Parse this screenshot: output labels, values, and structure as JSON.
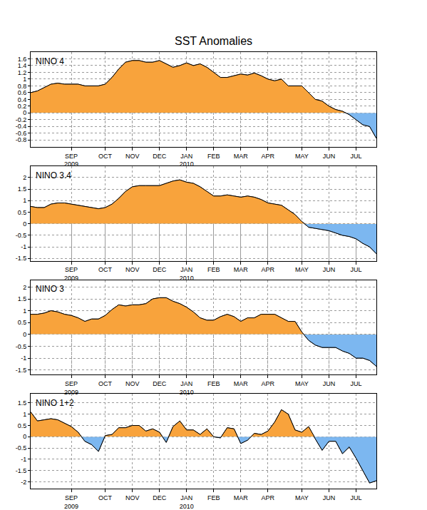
{
  "title": "SST Anomalies",
  "chart_data": [
    {
      "type": "area",
      "title": "NINO 4",
      "categories": [
        null,
        null,
        null,
        null,
        null,
        null,
        "SEP\n2009",
        null,
        null,
        null,
        null,
        "OCT",
        null,
        null,
        null,
        "NOV",
        null,
        null,
        null,
        "DEC",
        null,
        null,
        null,
        "JAN\n2010",
        null,
        null,
        null,
        "FEB",
        null,
        null,
        null,
        "MAR",
        null,
        null,
        null,
        "APR",
        null,
        null,
        null,
        null,
        "MAY",
        null,
        null,
        null,
        "JUN",
        null,
        null,
        null,
        "JUL",
        null,
        null,
        null
      ],
      "values": [
        0.6,
        0.65,
        0.75,
        0.85,
        0.88,
        0.85,
        0.85,
        0.85,
        0.8,
        0.8,
        0.8,
        0.85,
        1.05,
        1.3,
        1.5,
        1.55,
        1.55,
        1.5,
        1.5,
        1.55,
        1.45,
        1.35,
        1.4,
        1.48,
        1.4,
        1.45,
        1.35,
        1.2,
        1.05,
        1.05,
        1.1,
        1.15,
        1.12,
        1.18,
        1.1,
        1.0,
        0.95,
        1.0,
        0.8,
        0.8,
        0.8,
        0.6,
        0.4,
        0.35,
        0.2,
        0.1,
        0.05,
        -0.05,
        -0.2,
        -0.35,
        -0.4,
        -0.75
      ],
      "colors": [
        "#f8a33c",
        "#7cb7f0"
      ],
      "ylim": [
        -1,
        1.8
      ],
      "yticks": [
        -0.8,
        -0.6,
        -0.4,
        -0.2,
        0,
        0.2,
        0.4,
        0.6,
        0.8,
        1,
        1.2,
        1.4,
        1.6
      ],
      "grid": true
    },
    {
      "type": "area",
      "title": "NINO 3.4",
      "categories": [
        null,
        null,
        null,
        null,
        null,
        null,
        "SEP\n2009",
        null,
        null,
        null,
        null,
        "OCT",
        null,
        null,
        null,
        "NOV",
        null,
        null,
        null,
        "DEC",
        null,
        null,
        null,
        "JAN\n2010",
        null,
        null,
        null,
        "FEB",
        null,
        null,
        null,
        "MAR",
        null,
        null,
        null,
        "APR",
        null,
        null,
        null,
        null,
        "MAY",
        null,
        null,
        null,
        "JUN",
        null,
        null,
        null,
        "JUL",
        null,
        null,
        null
      ],
      "values": [
        0.75,
        0.7,
        0.7,
        0.85,
        0.9,
        0.9,
        0.85,
        0.8,
        0.75,
        0.7,
        0.65,
        0.7,
        0.85,
        1.1,
        1.4,
        1.6,
        1.65,
        1.65,
        1.65,
        1.65,
        1.75,
        1.85,
        1.9,
        1.8,
        1.75,
        1.6,
        1.4,
        1.2,
        1.2,
        1.25,
        1.2,
        1.15,
        1.2,
        1.15,
        1.05,
        0.9,
        0.85,
        0.8,
        0.6,
        0.4,
        0.1,
        -0.15,
        -0.2,
        -0.25,
        -0.3,
        -0.4,
        -0.5,
        -0.55,
        -0.65,
        -0.85,
        -1.0,
        -1.3
      ],
      "colors": [
        "#f8a33c",
        "#7cb7f0"
      ],
      "ylim": [
        -1.6,
        2.5
      ],
      "yticks": [
        -1.5,
        -1,
        -0.5,
        0,
        0.5,
        1,
        1.5,
        2
      ],
      "grid": true
    },
    {
      "type": "area",
      "title": "NINO 3",
      "categories": [
        null,
        null,
        null,
        null,
        null,
        null,
        "SEP\n2009",
        null,
        null,
        null,
        null,
        "OCT",
        null,
        null,
        null,
        "NOV",
        null,
        null,
        null,
        "DEC",
        null,
        null,
        null,
        "JAN\n2010",
        null,
        null,
        null,
        "FEB",
        null,
        null,
        null,
        "MAR",
        null,
        null,
        null,
        "APR",
        null,
        null,
        null,
        null,
        "MAY",
        null,
        null,
        null,
        "JUN",
        null,
        null,
        null,
        "JUL",
        null,
        null,
        null
      ],
      "values": [
        0.85,
        0.85,
        0.9,
        1.0,
        0.95,
        0.85,
        0.8,
        0.7,
        0.55,
        0.65,
        0.65,
        0.8,
        1.05,
        1.25,
        1.2,
        1.25,
        1.25,
        1.3,
        1.5,
        1.55,
        1.55,
        1.4,
        1.3,
        1.15,
        0.95,
        0.7,
        0.6,
        0.6,
        0.75,
        0.85,
        0.75,
        0.55,
        0.7,
        0.7,
        0.85,
        0.85,
        0.85,
        0.7,
        0.55,
        0.55,
        0.1,
        -0.25,
        -0.45,
        -0.55,
        -0.55,
        -0.55,
        -0.7,
        -0.8,
        -1.0,
        -1.0,
        -1.1,
        -1.35
      ],
      "colors": [
        "#f8a33c",
        "#7cb7f0"
      ],
      "ylim": [
        -1.7,
        2.3
      ],
      "yticks": [
        -1.5,
        -1,
        -0.5,
        0,
        0.5,
        1,
        1.5,
        2
      ],
      "grid": true
    },
    {
      "type": "area",
      "title": "NINO 1+2",
      "categories": [
        null,
        null,
        null,
        null,
        null,
        null,
        "SEP\n2009",
        null,
        null,
        null,
        null,
        "OCT",
        null,
        null,
        null,
        "NOV",
        null,
        null,
        null,
        "DEC",
        null,
        null,
        null,
        "JAN\n2010",
        null,
        null,
        null,
        "FEB",
        null,
        null,
        null,
        "MAR",
        null,
        null,
        null,
        "APR",
        null,
        null,
        null,
        null,
        "MAY",
        null,
        null,
        null,
        "JUN",
        null,
        null,
        null,
        "JUL",
        null,
        null,
        null
      ],
      "values": [
        1.1,
        0.7,
        0.75,
        0.8,
        0.75,
        0.6,
        0.45,
        0.2,
        -0.2,
        -0.35,
        -0.65,
        0.05,
        0.1,
        0.4,
        0.4,
        0.5,
        0.5,
        0.25,
        0.35,
        0.2,
        -0.25,
        0.45,
        0.7,
        0.3,
        0.3,
        0.1,
        0.35,
        0,
        -0.05,
        0.4,
        0.35,
        -0.3,
        -0.15,
        0.15,
        0.1,
        0.25,
        0.65,
        1.2,
        1.0,
        0.3,
        0.2,
        0.45,
        -0.1,
        -0.6,
        -0.2,
        -0.2,
        -0.75,
        -0.45,
        -0.95,
        -1.5,
        -2.05,
        -1.95
      ],
      "colors": [
        "#f8a33c",
        "#7cb7f0"
      ],
      "ylim": [
        -2.3,
        1.9
      ],
      "yticks": [
        -2,
        -1.5,
        -1,
        -0.5,
        0,
        0.5,
        1,
        1.5
      ],
      "grid": true
    }
  ]
}
